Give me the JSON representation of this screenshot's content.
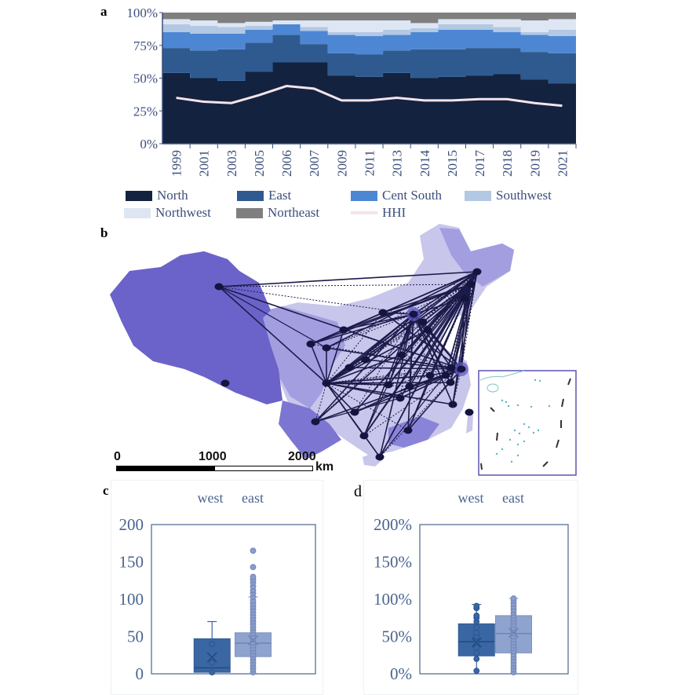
{
  "panel_labels": {
    "a": "a",
    "b": "b",
    "c": "c",
    "d": "d"
  },
  "colors": {
    "North": "#13223f",
    "East": "#2f5a8f",
    "Cent South": "#4d87d4",
    "Southwest": "#b3c8e3",
    "Northwest": "#dde6f2",
    "Northeast": "#7f7f7f",
    "HHI": "#f4e4ea",
    "text": "#3d4f7c"
  },
  "legend": [
    {
      "label": "North",
      "color": "#13223f"
    },
    {
      "label": "East",
      "color": "#2f5a8f"
    },
    {
      "label": "Cent South",
      "color": "#4d87d4"
    },
    {
      "label": "Southwest",
      "color": "#b3c8e3"
    },
    {
      "label": "Northwest",
      "color": "#dde6f2"
    },
    {
      "label": "Northeast",
      "color": "#7f7f7f"
    },
    {
      "label": "HHI",
      "color": "#f4e4ea"
    }
  ],
  "map": {
    "scale_labels": [
      "0",
      "1000",
      "2000"
    ],
    "scale_unit": "km"
  },
  "chart_data": [
    {
      "type": "area",
      "stacked": "percent",
      "categories": [
        "1999",
        "2001",
        "2003",
        "2005",
        "2006",
        "2007",
        "2009",
        "2011",
        "2013",
        "2014",
        "2015",
        "2017",
        "2018",
        "2019",
        "2021"
      ],
      "yticks": [
        "0%",
        "25%",
        "50%",
        "75%",
        "100%"
      ],
      "ylim": [
        0,
        100
      ],
      "legend_position": "bottom",
      "series": [
        {
          "name": "North",
          "values": [
            54,
            50,
            48,
            55,
            62,
            62,
            52,
            51,
            54,
            50,
            51,
            52,
            53,
            49,
            46
          ]
        },
        {
          "name": "East",
          "values": [
            19,
            21,
            24,
            22,
            21,
            14,
            17,
            17,
            17,
            22,
            21,
            21,
            20,
            21,
            23
          ]
        },
        {
          "name": "Cent South",
          "values": [
            12,
            13,
            12,
            10,
            8,
            10,
            14,
            14,
            12,
            13,
            15,
            14,
            12,
            13,
            13
          ]
        },
        {
          "name": "Southwest",
          "values": [
            6,
            6,
            5,
            3,
            0,
            3,
            2,
            3,
            4,
            3,
            4,
            4,
            4,
            2,
            5
          ]
        },
        {
          "name": "Northwest",
          "values": [
            4,
            4,
            3,
            3,
            3,
            5,
            9,
            9,
            7,
            4,
            4,
            4,
            6,
            9,
            8
          ]
        },
        {
          "name": "Northeast",
          "values": [
            5,
            6,
            8,
            7,
            6,
            6,
            6,
            6,
            6,
            8,
            5,
            5,
            5,
            6,
            5
          ]
        }
      ],
      "line_series": {
        "name": "HHI",
        "values": [
          35,
          32,
          31,
          37,
          44,
          42,
          33,
          33,
          35,
          33,
          33,
          34,
          34,
          31,
          29
        ]
      }
    },
    {
      "type": "box",
      "categories": [
        "west",
        "east"
      ],
      "yticks": [
        "0",
        "50",
        "100",
        "150",
        "200"
      ],
      "ylim": [
        0,
        200
      ],
      "boxes": [
        {
          "name": "west",
          "min": 2,
          "q1": 2,
          "median": 8,
          "q3": 47,
          "max": 70,
          "mean": 22,
          "points": [
            2,
            15,
            40
          ],
          "color": "#3a67a3"
        },
        {
          "name": "east",
          "min": 2,
          "q1": 23,
          "median": 41,
          "q3": 55,
          "max": 103,
          "mean": 45,
          "points": [
            2,
            6,
            10,
            14,
            18,
            22,
            26,
            30,
            34,
            38,
            42,
            46,
            50,
            54,
            58,
            62,
            66,
            70,
            74,
            78,
            82,
            86,
            90,
            94,
            98,
            103,
            108,
            112,
            117,
            122,
            126,
            130,
            143,
            165
          ],
          "color": "#8fa3cf"
        }
      ]
    },
    {
      "type": "box",
      "categories": [
        "west",
        "east"
      ],
      "yticks": [
        "0%",
        "50%",
        "100%",
        "150%",
        "200%"
      ],
      "ylim": [
        0,
        200
      ],
      "boxes": [
        {
          "name": "west",
          "min": 4,
          "q1": 24,
          "median": 43,
          "q3": 67,
          "max": 93,
          "mean": 42,
          "points": [
            4,
            20,
            28,
            35,
            42,
            50,
            55,
            62,
            70,
            75,
            78,
            88,
            91
          ],
          "color": "#3a67a3"
        },
        {
          "name": "east",
          "min": 2,
          "q1": 28,
          "median": 54,
          "q3": 78,
          "max": 101,
          "mean": 55,
          "points": [
            2,
            6,
            10,
            14,
            18,
            22,
            26,
            30,
            34,
            38,
            42,
            46,
            50,
            54,
            58,
            62,
            66,
            70,
            74,
            78,
            82,
            86,
            90,
            94,
            98,
            101
          ],
          "color": "#8fa3cf"
        }
      ]
    }
  ]
}
